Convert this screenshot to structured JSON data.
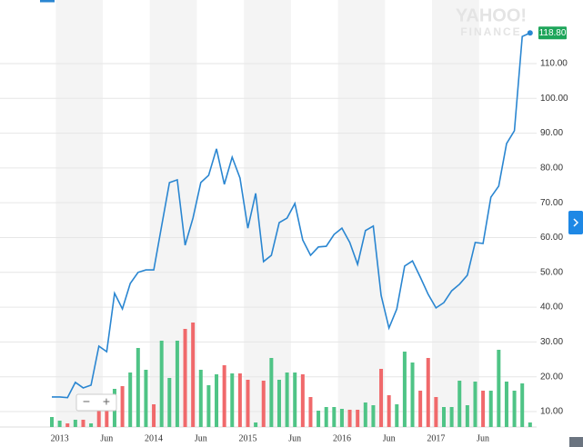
{
  "chart_data": {
    "type": "line",
    "watermark": [
      "YAHOO!",
      "FINANCE"
    ],
    "zoom_controls": [
      "−",
      "+"
    ],
    "categories": [
      null,
      "2013",
      null,
      null,
      null,
      null,
      null,
      "Jun",
      null,
      null,
      null,
      null,
      null,
      "2014",
      null,
      null,
      null,
      null,
      null,
      "Jun",
      null,
      null,
      null,
      null,
      null,
      "2015",
      null,
      null,
      null,
      null,
      null,
      "Jun",
      null,
      null,
      null,
      null,
      null,
      "2016",
      null,
      null,
      null,
      null,
      null,
      "Jun",
      null,
      null,
      null,
      null,
      null,
      "2017",
      null,
      null,
      null,
      null,
      null,
      "Jun",
      null,
      null,
      null,
      null,
      null,
      null
    ],
    "series": [
      {
        "color": "#2a86d1",
        "values": [
          14.2,
          14.2,
          14,
          18.4,
          16.8,
          17.6,
          28.8,
          27.2,
          44,
          39.5,
          46.8,
          50,
          50.7,
          50.7,
          63.3,
          75.8,
          76.6,
          57.8,
          65.6,
          75.8,
          77.9,
          85.5,
          75.3,
          83.1,
          77.1,
          62.7,
          72.7,
          53.1,
          54.9,
          64.3,
          65.6,
          69.8,
          59.3,
          54.9,
          57.3,
          57.5,
          60.9,
          62.7,
          58.6,
          52.3,
          62,
          63.3,
          43.4,
          34,
          39.5,
          51.8,
          53.3,
          48.6,
          43.7,
          39.8,
          41.3,
          44.7,
          46.6,
          49.2,
          58.6,
          58.3,
          71.6,
          74.8,
          87,
          90.7,
          117.8,
          118.8
        ],
        "value_labels": [
          null,
          null,
          null,
          null,
          null,
          null,
          null,
          null,
          null,
          null,
          null,
          null,
          null,
          null,
          null,
          null,
          null,
          null,
          null,
          null,
          null,
          null,
          null,
          null,
          null,
          null,
          null,
          null,
          null,
          null,
          null,
          null,
          null,
          null,
          null,
          null,
          null,
          null,
          null,
          null,
          null,
          null,
          null,
          null,
          null,
          null,
          null,
          null,
          null,
          null,
          null,
          null,
          null,
          null,
          null,
          null,
          null,
          null,
          null,
          null,
          null,
          "118.80"
        ]
      }
    ],
    "volume": {
      "vlim": [
        0,
        120
      ],
      "values": [
        11,
        7,
        4,
        8,
        8,
        4,
        25,
        33,
        42,
        45,
        60,
        87,
        63,
        25,
        95,
        54,
        95,
        108,
        115,
        63,
        46,
        58,
        68,
        59,
        59,
        52,
        5,
        51,
        76,
        52,
        60,
        60,
        58,
        33,
        18,
        22,
        22,
        20,
        19,
        19,
        27,
        24,
        64,
        35,
        25,
        83,
        71,
        40,
        76,
        33,
        22,
        22,
        51,
        24,
        50,
        40,
        40,
        85,
        50,
        40,
        48,
        5
      ],
      "colors": [
        "#4fc486",
        "#4fc486",
        "#f0696b",
        "#4fc486",
        "#f0696b",
        "#4fc486",
        "#f0696b",
        "#f0696b",
        "#4fc486",
        "#f0696b",
        "#4fc486",
        "#4fc486",
        "#4fc486",
        "#f0696b",
        "#4fc486",
        "#4fc486",
        "#4fc486",
        "#f0696b",
        "#f0696b",
        "#4fc486",
        "#4fc486",
        "#4fc486",
        "#f0696b",
        "#4fc486",
        "#f0696b",
        "#f0696b",
        "#4fc486",
        "#f0696b",
        "#4fc486",
        "#4fc486",
        "#4fc486",
        "#4fc486",
        "#f0696b",
        "#f0696b",
        "#4fc486",
        "#4fc486",
        "#4fc486",
        "#4fc486",
        "#f0696b",
        "#f0696b",
        "#4fc486",
        "#4fc486",
        "#f0696b",
        "#f0696b",
        "#4fc486",
        "#4fc486",
        "#4fc486",
        "#f0696b",
        "#f0696b",
        "#f0696b",
        "#4fc486",
        "#4fc486",
        "#4fc486",
        "#4fc486",
        "#4fc486",
        "#f0696b",
        "#4fc486",
        "#4fc486",
        "#4fc486",
        "#4fc486",
        "#4fc486",
        "#4fc486"
      ]
    },
    "ylim": [
      5.56,
      128.27
    ],
    "yticks": [
      {
        "value": 10,
        "label": "10.00"
      },
      {
        "value": 20,
        "label": "20.00"
      },
      {
        "value": 30,
        "label": "30.00"
      },
      {
        "value": 40,
        "label": "40.00"
      },
      {
        "value": 50,
        "label": "50.00"
      },
      {
        "value": 60,
        "label": "60.00"
      },
      {
        "value": 70,
        "label": "70.00"
      },
      {
        "value": 80,
        "label": "80.00"
      },
      {
        "value": 90,
        "label": "90.00"
      },
      {
        "value": 100,
        "label": "100.00"
      },
      {
        "value": 110,
        "label": "110.00"
      }
    ],
    "grid": true,
    "label_color": "#1ea55a"
  }
}
